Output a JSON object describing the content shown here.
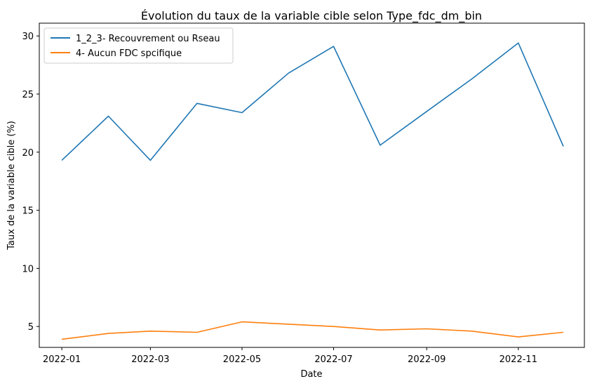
{
  "chart_data": {
    "type": "line",
    "title": "Évolution du taux de la variable cible selon Type_fdc_dm_bin",
    "xlabel": "Date",
    "ylabel": "Taux de la variable cible (%)",
    "x": [
      "2022-01-01",
      "2022-02-01",
      "2022-03-01",
      "2022-04-01",
      "2022-05-01",
      "2022-06-01",
      "2022-07-01",
      "2022-08-01",
      "2022-09-01",
      "2022-10-01",
      "2022-11-01",
      "2022-12-01"
    ],
    "x_ticks": [
      "2022-01",
      "2022-03",
      "2022-05",
      "2022-07",
      "2022-09",
      "2022-11"
    ],
    "y_ticks": [
      5,
      10,
      15,
      20,
      25,
      30
    ],
    "xlim": [
      "2021-12-17",
      "2022-12-15"
    ],
    "ylim": [
      3.2,
      31.1
    ],
    "grid": false,
    "legend_position": "top-left",
    "series": [
      {
        "name": "1_2_3- Recouvrement ou Rseau",
        "color": "#1f77b4",
        "values": [
          19.3,
          23.1,
          19.3,
          24.2,
          23.4,
          26.8,
          29.1,
          20.6,
          23.5,
          26.3,
          29.4,
          20.5
        ]
      },
      {
        "name": "4- Aucun FDC spcifique",
        "color": "#ff7f0e",
        "values": [
          3.9,
          4.4,
          4.6,
          4.5,
          5.4,
          5.2,
          5.0,
          4.7,
          4.8,
          4.6,
          4.1,
          4.5
        ]
      }
    ]
  }
}
